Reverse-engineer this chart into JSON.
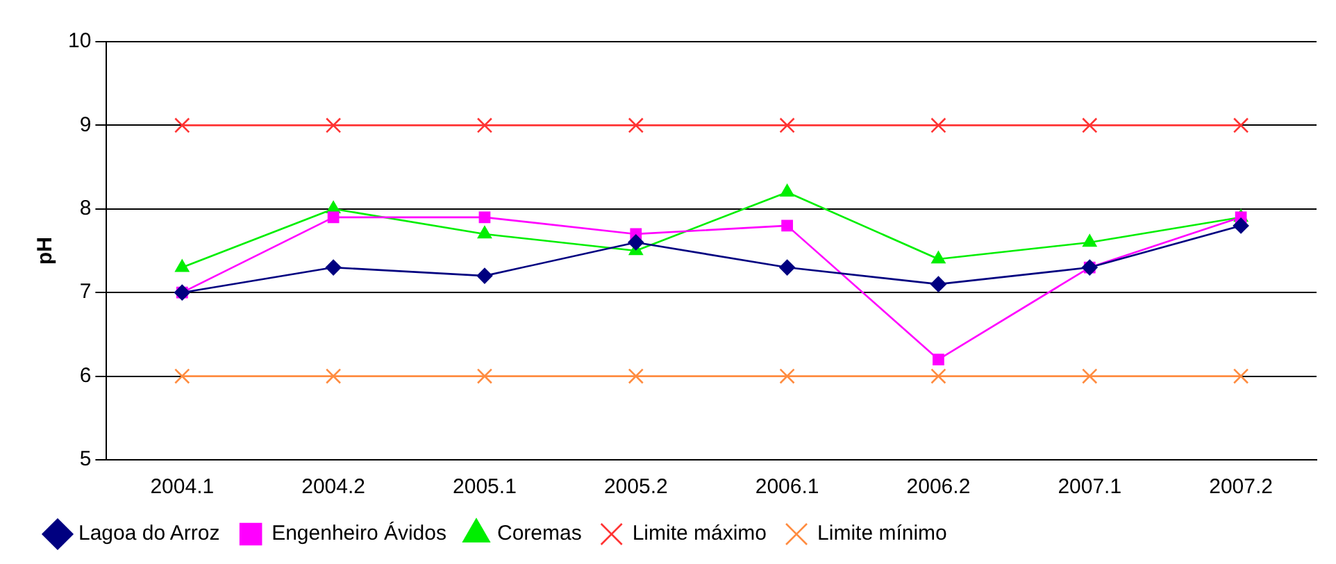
{
  "chart_data": {
    "type": "line",
    "ylabel": "pH",
    "categories": [
      "2004.1",
      "2004.2",
      "2005.1",
      "2005.2",
      "2006.1",
      "2006.2",
      "2007.1",
      "2007.2"
    ],
    "ylim": [
      5,
      10
    ],
    "yticks": [
      5,
      6,
      7,
      8,
      9,
      10
    ],
    "grid": "y",
    "legend": "bottom",
    "series": [
      {
        "name": "Lagoa do Arroz",
        "color": "#000080",
        "marker": "diamond",
        "values": [
          7.0,
          7.3,
          7.2,
          7.6,
          7.3,
          7.1,
          7.3,
          7.8
        ]
      },
      {
        "name": "Engenheiro Ávidos",
        "color": "#ff00ff",
        "marker": "square",
        "values": [
          7.0,
          7.9,
          7.9,
          7.7,
          7.8,
          6.2,
          7.3,
          7.9
        ]
      },
      {
        "name": "Coremas",
        "color": "#00ee00",
        "marker": "triangle",
        "values": [
          7.3,
          8.0,
          7.7,
          7.5,
          8.2,
          7.4,
          7.6,
          7.9
        ]
      },
      {
        "name": "Limite máximo",
        "color": "#ff3333",
        "marker": "cross",
        "values": [
          9,
          9,
          9,
          9,
          9,
          9,
          9,
          9
        ]
      },
      {
        "name": "Limite mínimo",
        "color": "#ff8c40",
        "marker": "cross",
        "values": [
          6,
          6,
          6,
          6,
          6,
          6,
          6,
          6
        ]
      }
    ]
  }
}
